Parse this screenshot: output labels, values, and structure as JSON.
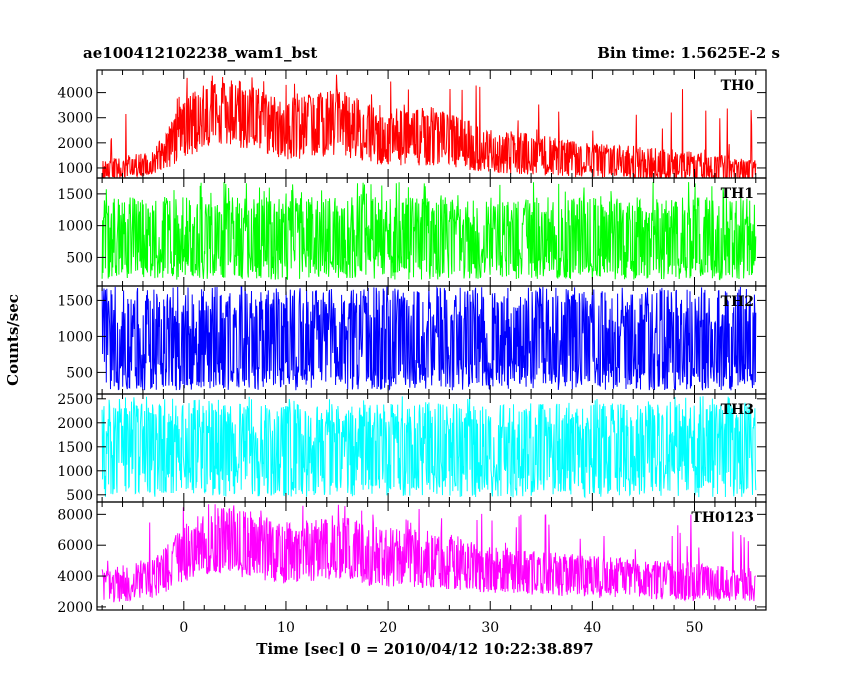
{
  "chart_data": {
    "type": "line",
    "title": "ae100412102238_wam1_bst",
    "subtitle": "Bin time: 1.5625E-2 s",
    "xlabel": "Time [sec] 0 = 2010/04/12 10:22:38.897",
    "ylabel": "Counts/sec",
    "xlim": [
      -8.5,
      57
    ],
    "x_ticks": [
      0,
      10,
      20,
      30,
      40,
      50
    ],
    "x_data_range": [
      -8,
      56
    ],
    "grid": false,
    "legend": "none",
    "panels": [
      {
        "name": "TH0",
        "color": "#ff0000",
        "ylim": [
          600,
          4900
        ],
        "y_ticks": [
          1000,
          2000,
          3000,
          4000
        ],
        "envelope": [
          {
            "t": -8,
            "low": 500,
            "high": 1300,
            "mean": 900
          },
          {
            "t": -3,
            "low": 700,
            "high": 1700,
            "mean": 1150
          },
          {
            "t": 0,
            "low": 1300,
            "high": 3700,
            "mean": 2500
          },
          {
            "t": 3,
            "low": 1900,
            "high": 4700,
            "mean": 3300
          },
          {
            "t": 7,
            "low": 1700,
            "high": 4300,
            "mean": 3000
          },
          {
            "t": 10,
            "low": 1300,
            "high": 3700,
            "mean": 2500
          },
          {
            "t": 15,
            "low": 1500,
            "high": 4200,
            "mean": 2800
          },
          {
            "t": 19,
            "low": 1100,
            "high": 3400,
            "mean": 2200
          },
          {
            "t": 25,
            "low": 1100,
            "high": 3300,
            "mean": 2200
          },
          {
            "t": 30,
            "low": 800,
            "high": 2600,
            "mean": 1700
          },
          {
            "t": 40,
            "low": 600,
            "high": 2000,
            "mean": 1300
          },
          {
            "t": 50,
            "low": 450,
            "high": 1700,
            "mean": 1050
          },
          {
            "t": 56,
            "low": 400,
            "high": 1300,
            "mean": 900
          }
        ]
      },
      {
        "name": "TH1",
        "color": "#00ff00",
        "ylim": [
          50,
          1750
        ],
        "y_ticks": [
          500,
          1000,
          1500
        ],
        "envelope": [
          {
            "t": -8,
            "low": 150,
            "high": 1450,
            "mean": 700
          },
          {
            "t": 56,
            "low": 150,
            "high": 1450,
            "mean": 700
          }
        ]
      },
      {
        "name": "TH2",
        "color": "#0000ff",
        "ylim": [
          200,
          1700
        ],
        "y_ticks": [
          500,
          1000,
          1500
        ],
        "envelope": [
          {
            "t": -8,
            "low": 250,
            "high": 1650,
            "mean": 800
          },
          {
            "t": 56,
            "low": 250,
            "high": 1650,
            "mean": 800
          }
        ]
      },
      {
        "name": "TH3",
        "color": "#00ffff",
        "ylim": [
          350,
          2600
        ],
        "y_ticks": [
          500,
          1000,
          1500,
          2000,
          2500
        ],
        "envelope": [
          {
            "t": -8,
            "low": 450,
            "high": 2400,
            "mean": 1400
          },
          {
            "t": 56,
            "low": 450,
            "high": 2400,
            "mean": 1400
          }
        ]
      },
      {
        "name": "TH0123",
        "color": "#ff00ff",
        "ylim": [
          1800,
          8800
        ],
        "y_ticks": [
          2000,
          4000,
          6000,
          8000
        ],
        "envelope": [
          {
            "t": -8,
            "low": 2200,
            "high": 4500,
            "mean": 3300
          },
          {
            "t": -3,
            "low": 2500,
            "high": 5200,
            "mean": 3800
          },
          {
            "t": 0,
            "low": 3600,
            "high": 7300,
            "mean": 5300
          },
          {
            "t": 3,
            "low": 4200,
            "high": 8600,
            "mean": 6200
          },
          {
            "t": 7,
            "low": 3800,
            "high": 8100,
            "mean": 5800
          },
          {
            "t": 10,
            "low": 3500,
            "high": 7500,
            "mean": 5400
          },
          {
            "t": 15,
            "low": 3800,
            "high": 8000,
            "mean": 5600
          },
          {
            "t": 19,
            "low": 3300,
            "high": 7200,
            "mean": 5100
          },
          {
            "t": 25,
            "low": 3200,
            "high": 6900,
            "mean": 4900
          },
          {
            "t": 30,
            "low": 2900,
            "high": 6000,
            "mean": 4400
          },
          {
            "t": 40,
            "low": 2600,
            "high": 5300,
            "mean": 3900
          },
          {
            "t": 50,
            "low": 2400,
            "high": 4800,
            "mean": 3500
          },
          {
            "t": 56,
            "low": 2300,
            "high": 4500,
            "mean": 3300
          }
        ]
      }
    ]
  }
}
